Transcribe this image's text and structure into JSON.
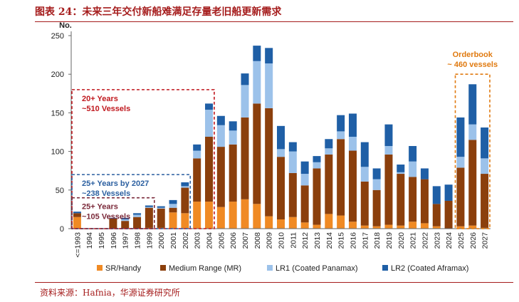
{
  "title": "图表 24：未来三年交付新船难满足存量老旧船更新需求",
  "source": "资料来源：Hafnia，华源证券研究所",
  "chart_data": {
    "type": "bar",
    "stacked": true,
    "ylabel": "No.",
    "ylim": [
      0,
      250
    ],
    "yticks": [
      0,
      50,
      100,
      150,
      200,
      250
    ],
    "categories": [
      "<=1993",
      "1994",
      "1995",
      "1996",
      "1997",
      "1998",
      "1999",
      "2000",
      "2001",
      "2002",
      "2003",
      "2004",
      "2005",
      "2006",
      "2007",
      "2008",
      "2009",
      "2010",
      "2011",
      "2012",
      "2013",
      "2014",
      "2015",
      "2016",
      "2017",
      "2018",
      "2019",
      "2020",
      "2021",
      "2022",
      "2023",
      "2024",
      "2025",
      "2026",
      "2027"
    ],
    "series": [
      {
        "name": "SR/Handy",
        "color": "#f08a24",
        "values": [
          15,
          0,
          0,
          0,
          0,
          0,
          1,
          1,
          21,
          20,
          35,
          35,
          28,
          35,
          38,
          32,
          16,
          12,
          15,
          8,
          5,
          19,
          17,
          9,
          4,
          3,
          5,
          4,
          9,
          7,
          3,
          0,
          3,
          4,
          1
        ]
      },
      {
        "name": "Medium Range (MR)",
        "color": "#8b3f0c",
        "values": [
          5,
          0,
          0,
          13,
          10,
          15,
          26,
          25,
          6,
          33,
          56,
          84,
          78,
          74,
          106,
          130,
          140,
          81,
          57,
          48,
          73,
          77,
          99,
          92,
          57,
          47,
          91,
          67,
          58,
          57,
          29,
          36,
          76,
          111,
          70
        ]
      },
      {
        "name": "LR1 (Coated Panamax)",
        "color": "#9cc2ea",
        "values": [
          0,
          0,
          0,
          0,
          2,
          3,
          1,
          1,
          5,
          2,
          10,
          35,
          28,
          18,
          42,
          55,
          58,
          10,
          28,
          15,
          8,
          8,
          10,
          18,
          19,
          14,
          11,
          2,
          20,
          0,
          0,
          0,
          14,
          20,
          20
        ]
      },
      {
        "name": "LR2 (Coated Aframax)",
        "color": "#1f5fa6",
        "values": [
          2,
          0,
          0,
          1,
          2,
          2,
          2,
          2,
          5,
          5,
          8,
          8,
          12,
          12,
          15,
          20,
          20,
          30,
          12,
          16,
          8,
          12,
          21,
          30,
          32,
          14,
          28,
          10,
          20,
          14,
          23,
          21,
          51,
          52,
          40
        ]
      }
    ],
    "annotations": [
      {
        "text": "20+ Years\n~510 Vessels",
        "color": "#c0181e",
        "span": [
          "<=1993",
          "2004"
        ],
        "level": 180
      },
      {
        "text": "25+ Years by 2027\n~238 Vessels",
        "color": "#2b5fa0",
        "span": [
          "<=1993",
          "2002"
        ],
        "level": 70
      },
      {
        "text": "25+ Years\n~105 Vessels",
        "color": "#7b2a3a",
        "span": [
          "<=1993",
          "1999"
        ],
        "level": 40
      },
      {
        "text": "Orderbook\n~ 460 vessels",
        "color": "#e07a10",
        "span": [
          "2025",
          "2027"
        ],
        "level": 200
      }
    ]
  }
}
